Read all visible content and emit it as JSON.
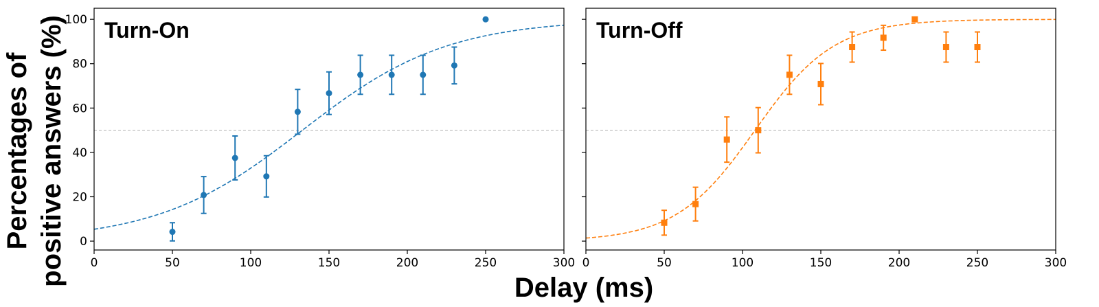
{
  "figure": {
    "xlabel": "Delay (ms)",
    "ylabel_line1": "Percentages of",
    "ylabel_line2": "positive answers (%)"
  },
  "chart_data": [
    {
      "type": "scatter",
      "title": "Turn-On",
      "color": "#1f77b4",
      "marker": "circle",
      "xlim": [
        0,
        300
      ],
      "ylim": [
        -4,
        105
      ],
      "xticks": [
        0,
        50,
        100,
        150,
        200,
        250,
        300
      ],
      "yticks": [
        0,
        20,
        40,
        60,
        80,
        100
      ],
      "show_ytick_labels": true,
      "reference_line_y": 50,
      "series": [
        {
          "x": [
            50,
            70,
            90,
            110,
            130,
            150,
            170,
            190,
            210,
            230,
            250
          ],
          "y": [
            4.2,
            20.8,
            37.5,
            29.2,
            58.3,
            66.7,
            75.0,
            75.0,
            75.0,
            79.2,
            100
          ],
          "err": [
            4.1,
            8.3,
            9.9,
            9.3,
            10.1,
            9.6,
            8.8,
            8.8,
            8.8,
            8.3,
            0
          ]
        }
      ],
      "fit": {
        "midpoint": 133,
        "slope": 0.0216
      }
    },
    {
      "type": "scatter",
      "title": "Turn-Off",
      "color": "#ff7f0e",
      "marker": "square",
      "xlim": [
        0,
        300
      ],
      "ylim": [
        -4,
        105
      ],
      "xticks": [
        0,
        50,
        100,
        150,
        200,
        250,
        300
      ],
      "yticks": [
        0,
        20,
        40,
        60,
        80,
        100
      ],
      "show_ytick_labels": false,
      "reference_line_y": 50,
      "series": [
        {
          "x": [
            50,
            70,
            90,
            110,
            130,
            150,
            170,
            190,
            210,
            230,
            250
          ],
          "y": [
            8.3,
            16.7,
            45.8,
            50.0,
            75.0,
            70.8,
            87.5,
            91.7,
            100,
            87.5,
            87.5
          ],
          "err": [
            5.6,
            7.6,
            10.2,
            10.2,
            8.8,
            9.3,
            6.8,
            5.6,
            0,
            6.8,
            6.8
          ]
        }
      ],
      "fit": {
        "midpoint": 108,
        "slope": 0.0395
      }
    }
  ]
}
